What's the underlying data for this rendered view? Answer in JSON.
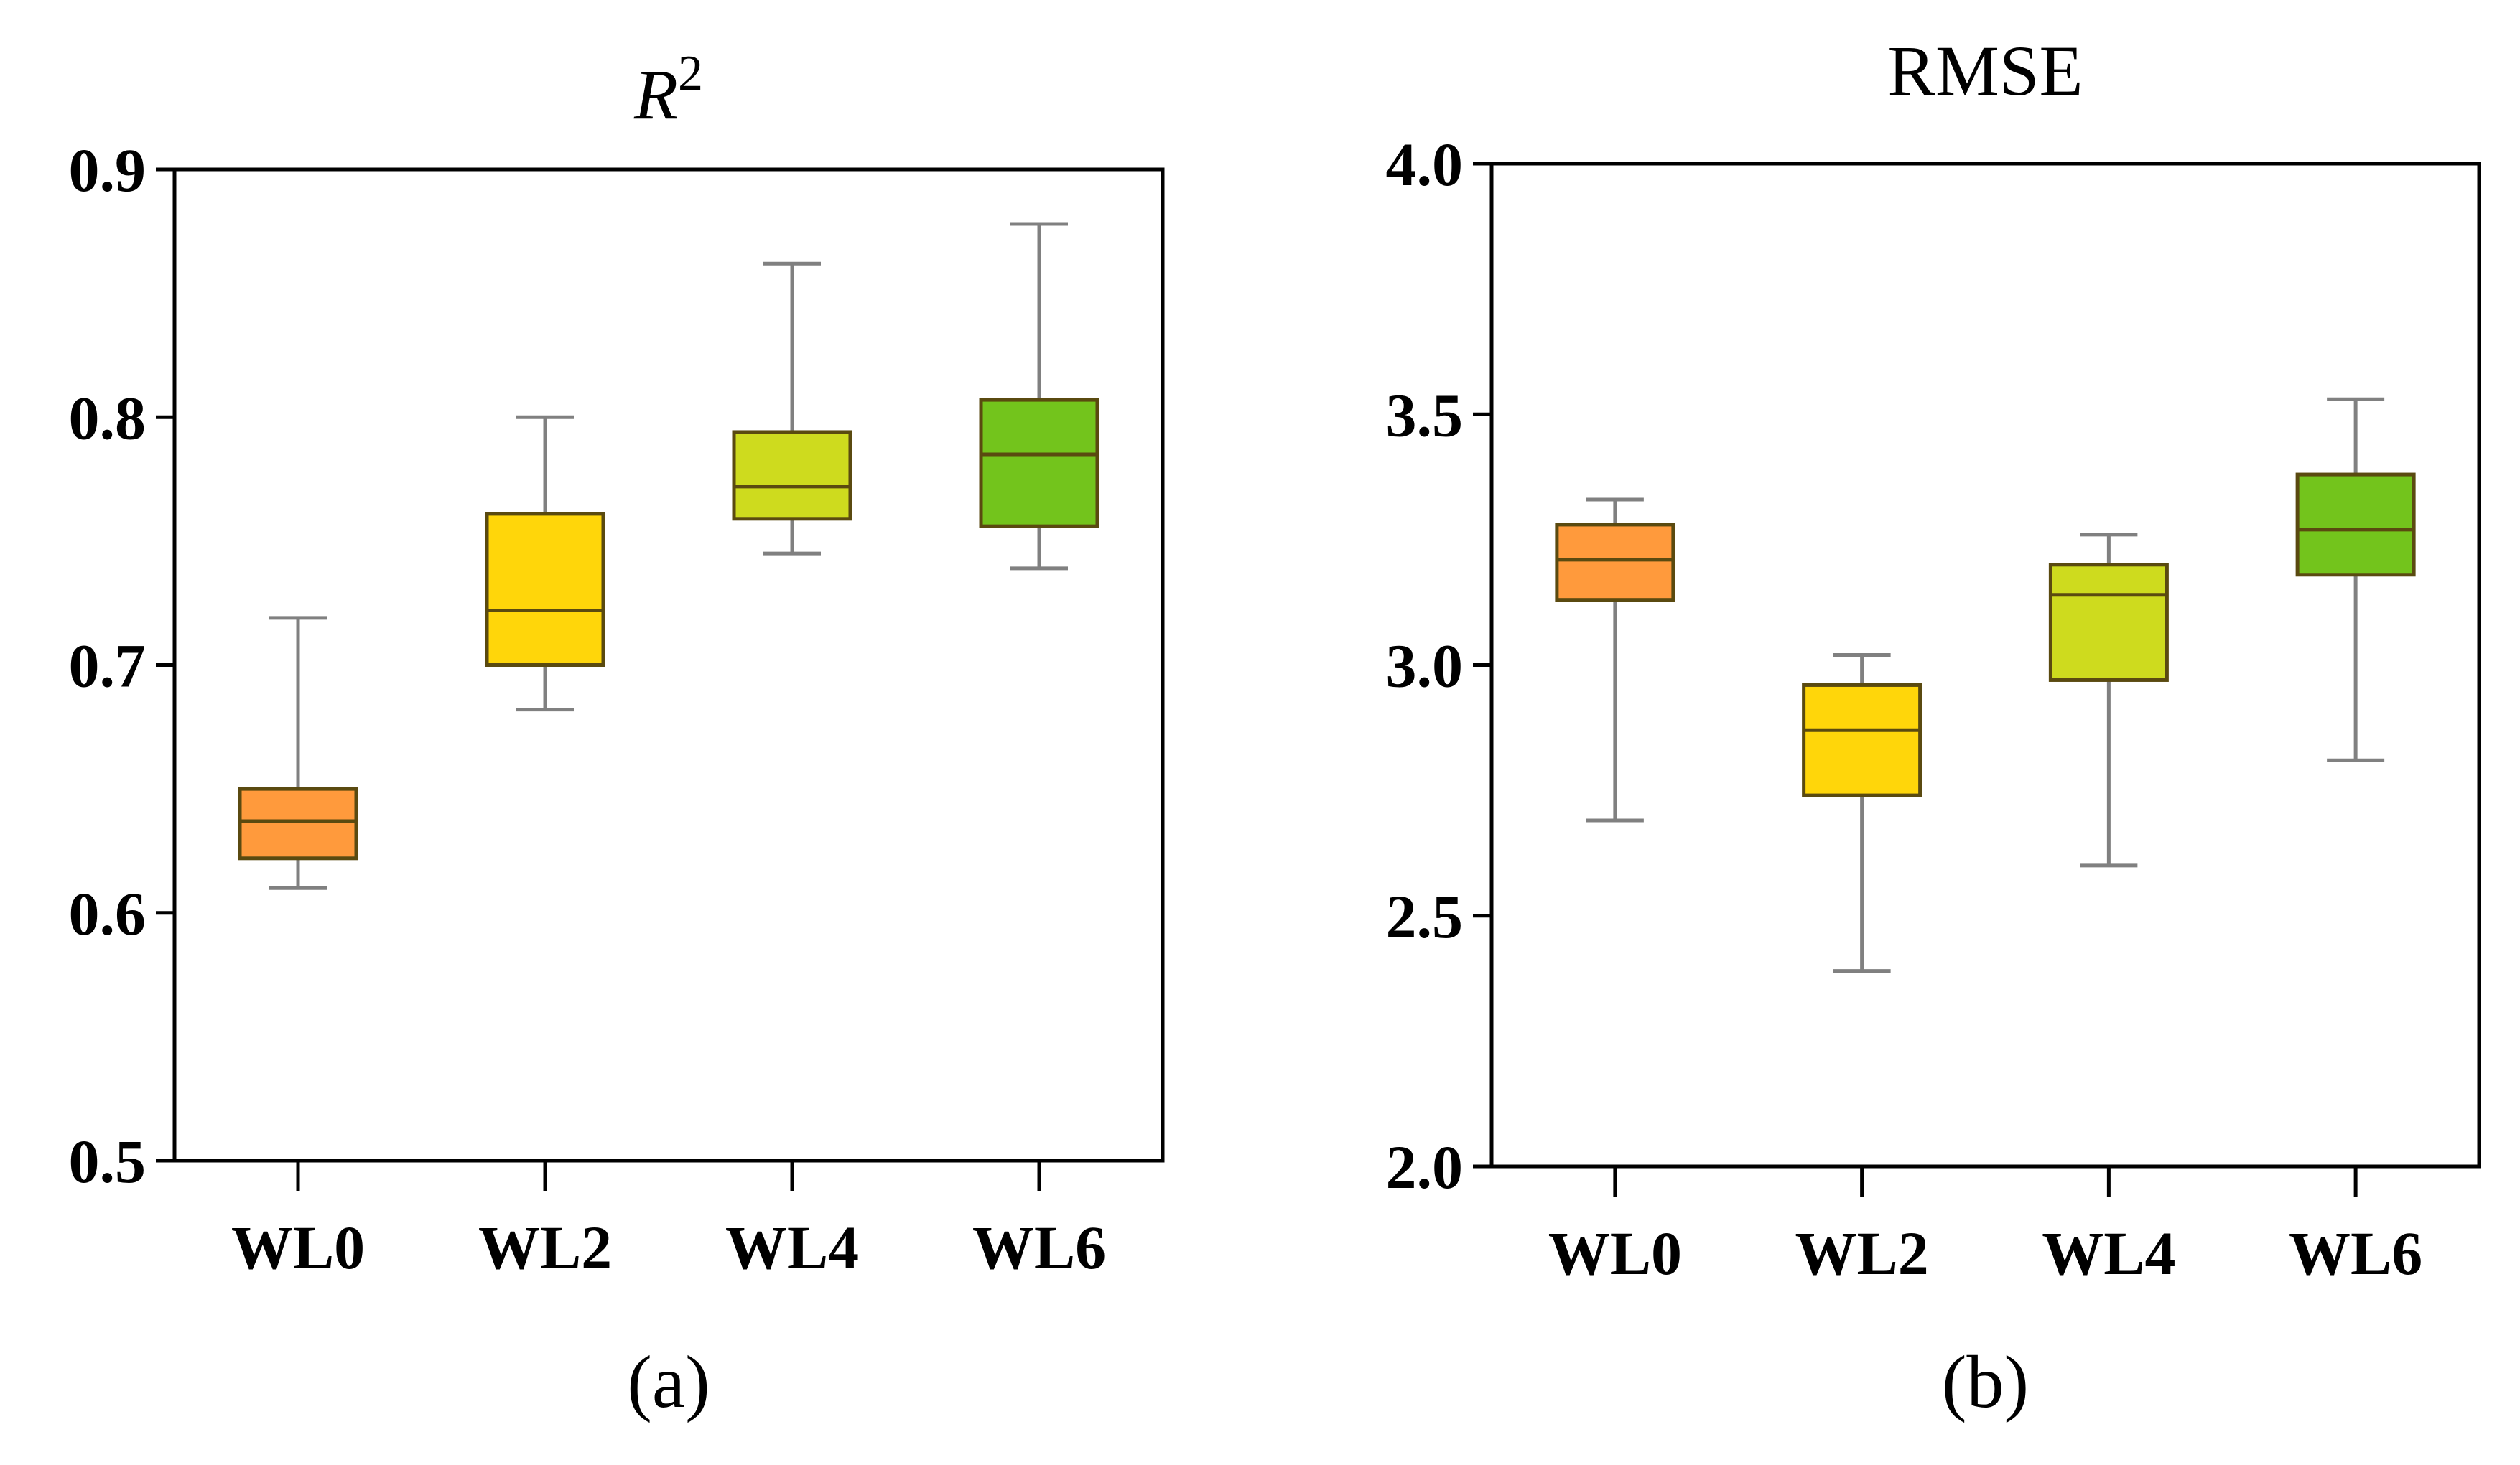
{
  "chart_data": [
    {
      "type": "box",
      "panel_label": "(a)",
      "title": "R",
      "title_superscript": "2",
      "title_italic": true,
      "ylim": [
        0.5,
        0.9
      ],
      "yticks": [
        "0.5",
        "0.6",
        "0.7",
        "0.8",
        "0.9"
      ],
      "grid": false,
      "categories": [
        "WL0",
        "WL2",
        "WL4",
        "WL6"
      ],
      "boxes": [
        {
          "category": "WL0",
          "min": 0.61,
          "q1": 0.622,
          "median": 0.637,
          "q3": 0.65,
          "max": 0.719,
          "color": "#FF9A3C"
        },
        {
          "category": "WL2",
          "min": 0.682,
          "q1": 0.7,
          "median": 0.722,
          "q3": 0.761,
          "max": 0.8,
          "color": "#FFD60A"
        },
        {
          "category": "WL4",
          "min": 0.745,
          "q1": 0.759,
          "median": 0.772,
          "q3": 0.794,
          "max": 0.862,
          "color": "#CEDB1E"
        },
        {
          "category": "WL6",
          "min": 0.739,
          "q1": 0.756,
          "median": 0.785,
          "q3": 0.807,
          "max": 0.878,
          "color": "#73C41C"
        }
      ]
    },
    {
      "type": "box",
      "panel_label": "(b)",
      "title": "RMSE",
      "title_superscript": "",
      "title_italic": false,
      "ylim": [
        2.0,
        4.0
      ],
      "yticks": [
        "2.0",
        "2.5",
        "3.0",
        "3.5",
        "4.0"
      ],
      "grid": false,
      "categories": [
        "WL0",
        "WL2",
        "WL4",
        "WL6"
      ],
      "boxes": [
        {
          "category": "WL0",
          "min": 2.69,
          "q1": 3.13,
          "median": 3.21,
          "q3": 3.28,
          "max": 3.33,
          "color": "#FF9A3C"
        },
        {
          "category": "WL2",
          "min": 2.39,
          "q1": 2.74,
          "median": 2.87,
          "q3": 2.96,
          "max": 3.02,
          "color": "#FFD60A"
        },
        {
          "category": "WL4",
          "min": 2.6,
          "q1": 2.97,
          "median": 3.14,
          "q3": 3.2,
          "max": 3.26,
          "color": "#CEDB1E"
        },
        {
          "category": "WL6",
          "min": 2.81,
          "q1": 3.18,
          "median": 3.27,
          "q3": 3.38,
          "max": 3.53,
          "color": "#73C41C"
        }
      ]
    }
  ],
  "colors": {
    "whisker": "#808080",
    "box_edge": "#5a4a10",
    "axis": "#000000"
  }
}
